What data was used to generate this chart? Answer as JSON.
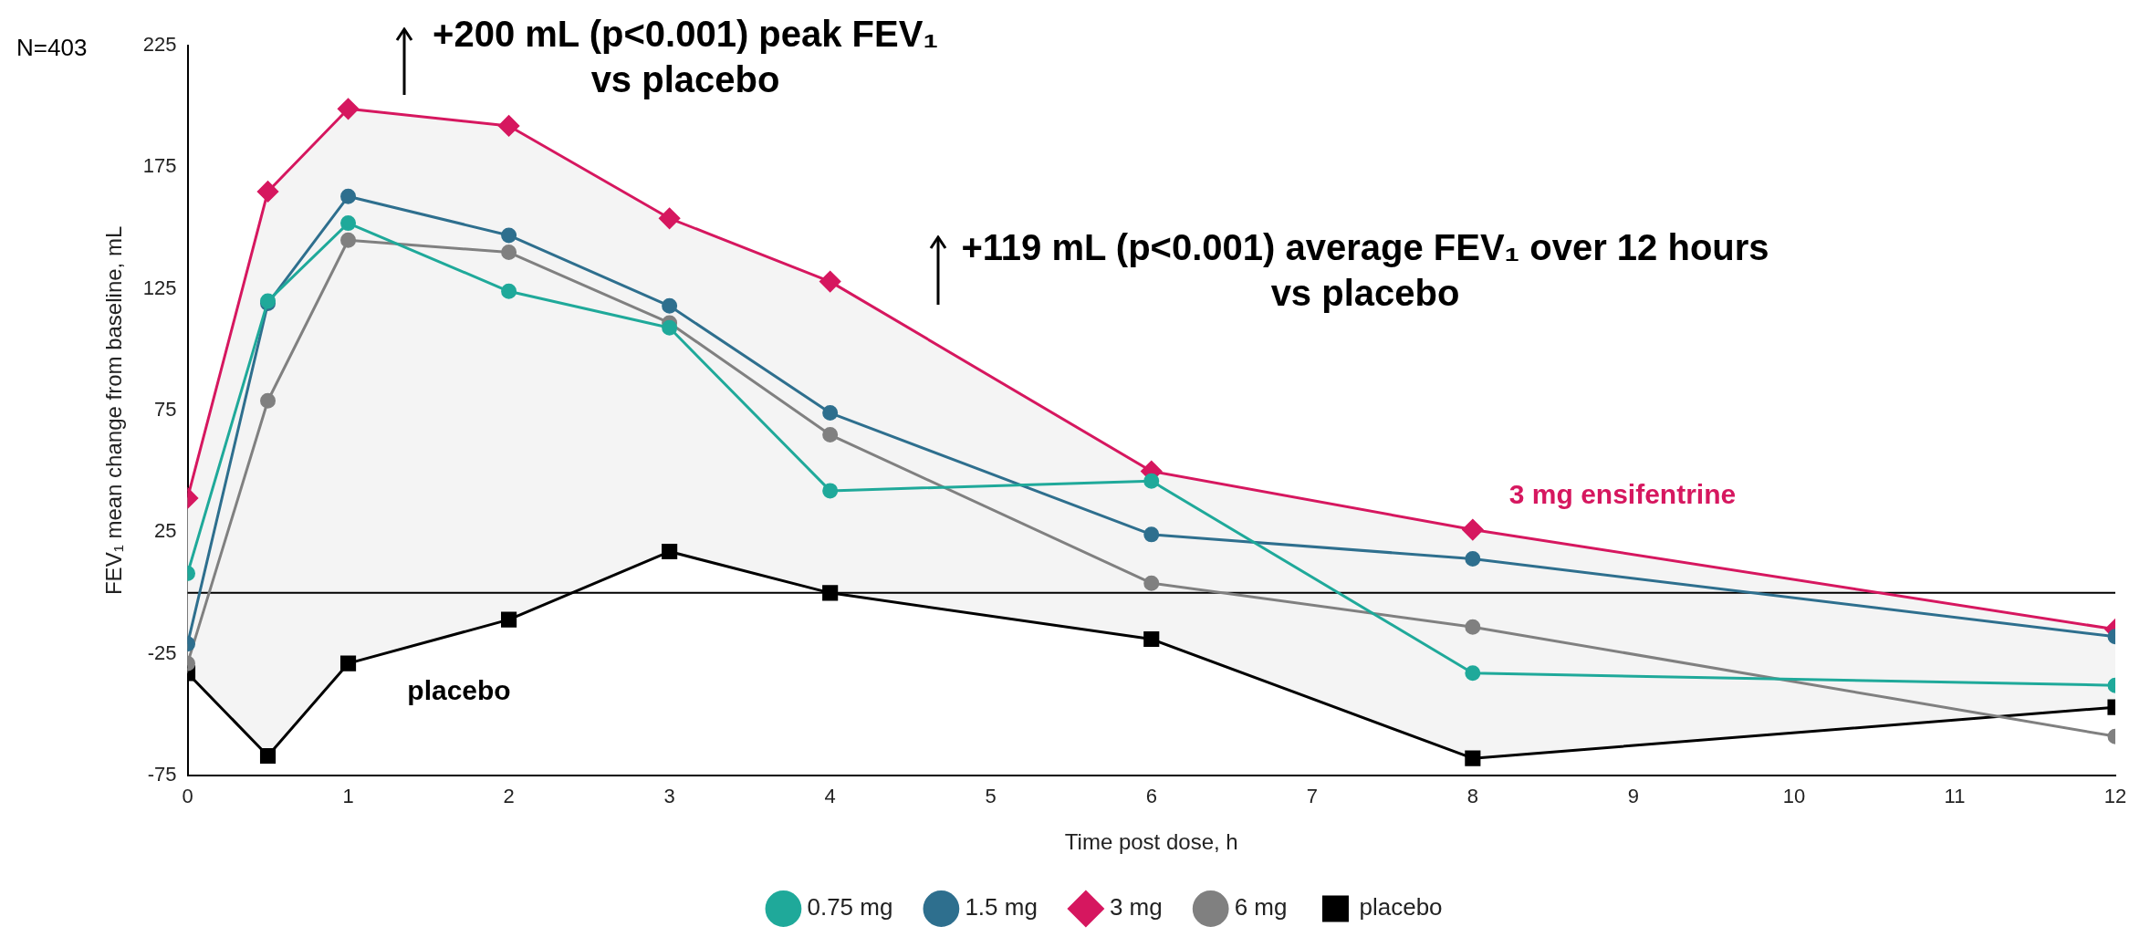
{
  "chart_data": {
    "type": "line",
    "xlabel": "Time post dose, h",
    "ylabel": "FEV₁ mean change from baseline, mL",
    "x": [
      0,
      0.5,
      1,
      2,
      3,
      4,
      6,
      8,
      12
    ],
    "series": [
      {
        "name": "0.75 mg",
        "color": "#1fa99a",
        "marker": "circle",
        "values": [
          8,
          120,
          152,
          124,
          109,
          42,
          46,
          -33,
          -38
        ]
      },
      {
        "name": "1.5 mg",
        "color": "#2e6f8e",
        "marker": "circle",
        "values": [
          -21,
          119,
          163,
          147,
          118,
          74,
          24,
          14,
          -18
        ]
      },
      {
        "name": "3 mg",
        "color": "#d6175f",
        "marker": "diamond",
        "values": [
          39,
          165,
          199,
          192,
          154,
          128,
          50,
          26,
          -15
        ],
        "lower": [
          -33,
          -67,
          -29,
          -11,
          17,
          0,
          -19,
          -68,
          -47
        ],
        "upper": [
          39,
          165,
          199,
          192,
          154,
          128,
          50,
          26,
          -15
        ]
      },
      {
        "name": "6 mg",
        "color": "#808080",
        "marker": "circle",
        "values": [
          -29,
          79,
          145,
          140,
          111,
          65,
          4,
          -14,
          -59
        ]
      },
      {
        "name": "placebo",
        "color": "#000000",
        "marker": "square",
        "values": [
          -33,
          -67,
          -29,
          -11,
          17,
          0,
          -19,
          -68,
          -47
        ]
      }
    ],
    "xlim": [
      0,
      12
    ],
    "xticks": [
      0,
      1,
      2,
      3,
      4,
      5,
      6,
      7,
      8,
      9,
      10,
      11,
      12
    ],
    "ylim": [
      -75,
      225
    ],
    "yticks": [
      -75,
      -25,
      25,
      75,
      125,
      175,
      225
    ],
    "ref_lines": [
      {
        "axis": "y",
        "value": 0,
        "color": "#000000"
      }
    ],
    "annotations": [
      "N=403",
      "+200 mL (p<0.001) peak FEV₁\nvs placebo",
      "+119 mL (p<0.001) average FEV₁ over 12 hours\nvs placebo",
      "3 mg ensifentrine",
      "placebo"
    ],
    "grid": false,
    "legend": "bottom",
    "line_style": "solid"
  }
}
